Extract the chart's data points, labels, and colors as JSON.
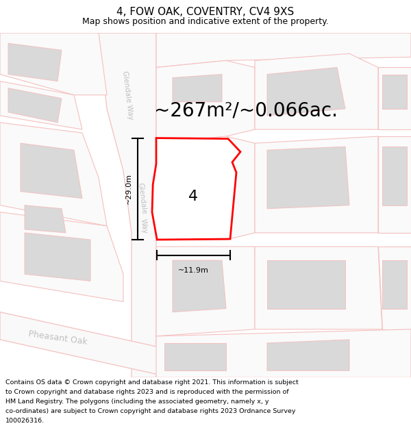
{
  "title": "4, FOW OAK, COVENTRY, CV4 9XS",
  "subtitle": "Map shows position and indicative extent of the property.",
  "area_text": "~267m²/~0.066ac.",
  "dim_width": "~11.9m",
  "dim_height": "~29.0m",
  "property_number": "4",
  "footer_lines": [
    "Contains OS data © Crown copyright and database right 2021. This information is subject",
    "to Crown copyright and database rights 2023 and is reproduced with the permission of",
    "HM Land Registry. The polygons (including the associated geometry, namely x, y",
    "co-ordinates) are subject to Crown copyright and database rights 2023 Ordnance Survey",
    "100026316."
  ],
  "bg_color": "#ffffff",
  "road_color": "#f5c0c0",
  "building_color": "#d9d9d9",
  "highlight_color": "#ff0000",
  "street_label_color": "#c0c0c0",
  "title_fontsize": 11,
  "subtitle_fontsize": 9,
  "area_fontsize": 20,
  "footer_fontsize": 6.8,
  "prop_num_fontsize": 16,
  "street_fontsize": 7.5,
  "pheasant_fontsize": 9,
  "dim_fontsize": 8
}
